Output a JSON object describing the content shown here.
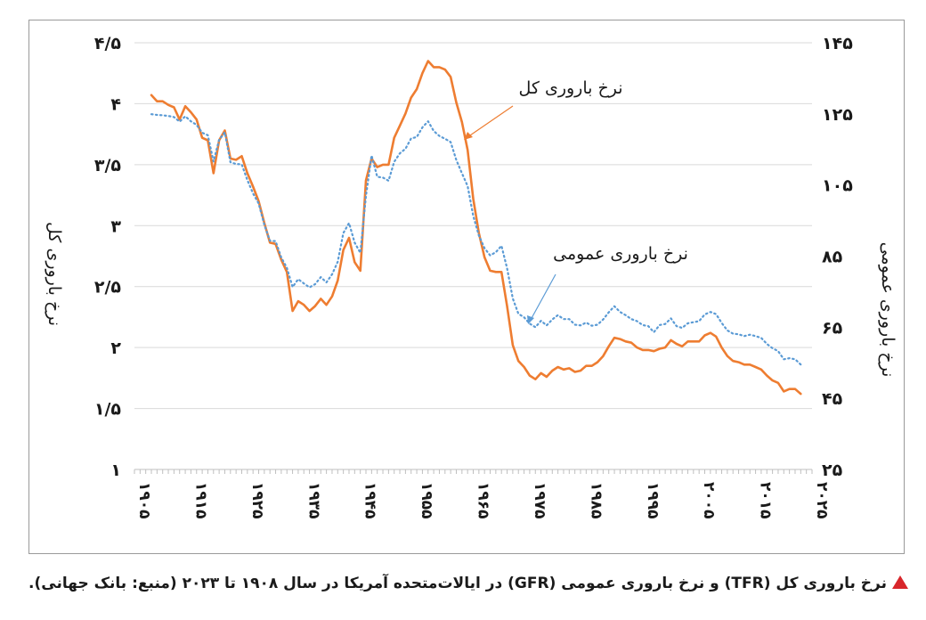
{
  "caption": {
    "text": "نرخ باروری کل (TFR) و نرخ باروری عمومی (GFR) در ایالات‌متحده آمریکا در سال ۱۹۰۸ تا ۲۰۲۳ (منبع: بانک جهانی).",
    "marker_color": "#d8262b"
  },
  "chart_data": {
    "type": "line",
    "title": "",
    "xlabel": "",
    "ylabel_left": "نرخ باروری کل",
    "ylabel_right": "نرخ باروری عمومی",
    "xlim": [
      1905,
      2025
    ],
    "ylim_left": [
      1,
      4.5
    ],
    "ylim_right": [
      25,
      145
    ],
    "x_ticks": [
      1905,
      1915,
      1925,
      1935,
      1945,
      1955,
      1965,
      1975,
      1985,
      1995,
      2005,
      2015,
      2025
    ],
    "x_tick_labels": [
      "۱۹۰۵",
      "۱۹۱۵",
      "۱۹۲۵",
      "۱۹۳۵",
      "۱۹۴۵",
      "۱۹۵۵",
      "۱۹۶۵",
      "۱۹۷۵",
      "۱۹۸۵",
      "۱۹۹۵",
      "۲۰۰۵",
      "۲۰۱۵",
      "۲۰۲۵"
    ],
    "y_ticks_left": [
      1,
      1.5,
      2,
      2.5,
      3,
      3.5,
      4,
      4.5
    ],
    "y_tick_labels_left": [
      "۱",
      "۱/۵",
      "۲",
      "۲/۵",
      "۳",
      "۳/۵",
      "۴",
      "۴/۵"
    ],
    "y_ticks_right": [
      25,
      45,
      65,
      85,
      105,
      125,
      145
    ],
    "y_tick_labels_right": [
      "۲۵",
      "۴۵",
      "۶۵",
      "۸۵",
      "۱۰۵",
      "۱۲۵",
      "۱۴۵"
    ],
    "grid": "horizontal",
    "series": [
      {
        "name": "نرخ باروری کل",
        "axis": "left",
        "color": "#ee7d31",
        "style": "solid",
        "x": [
          1908,
          1909,
          1910,
          1911,
          1912,
          1913,
          1914,
          1915,
          1916,
          1917,
          1918,
          1919,
          1920,
          1921,
          1922,
          1923,
          1924,
          1925,
          1926,
          1927,
          1928,
          1929,
          1930,
          1931,
          1932,
          1933,
          1934,
          1935,
          1936,
          1937,
          1938,
          1939,
          1940,
          1941,
          1942,
          1943,
          1944,
          1945,
          1946,
          1947,
          1948,
          1949,
          1950,
          1951,
          1952,
          1953,
          1954,
          1955,
          1956,
          1957,
          1958,
          1959,
          1960,
          1961,
          1962,
          1963,
          1964,
          1965,
          1966,
          1967,
          1968,
          1969,
          1970,
          1971,
          1972,
          1973,
          1974,
          1975,
          1976,
          1977,
          1978,
          1979,
          1980,
          1981,
          1982,
          1983,
          1984,
          1985,
          1986,
          1987,
          1988,
          1989,
          1990,
          1991,
          1992,
          1993,
          1994,
          1995,
          1996,
          1997,
          1998,
          1999,
          2000,
          2001,
          2002,
          2003,
          2004,
          2005,
          2006,
          2007,
          2008,
          2009,
          2010,
          2011,
          2012,
          2013,
          2014,
          2015,
          2016,
          2017,
          2018,
          2019,
          2020,
          2021,
          2022,
          2023
        ],
        "values": [
          4.07,
          4.02,
          4.02,
          3.99,
          3.97,
          3.87,
          3.98,
          3.93,
          3.87,
          3.72,
          3.7,
          3.43,
          3.7,
          3.78,
          3.55,
          3.54,
          3.57,
          3.43,
          3.32,
          3.2,
          3.02,
          2.86,
          2.85,
          2.72,
          2.62,
          2.3,
          2.38,
          2.35,
          2.3,
          2.34,
          2.4,
          2.35,
          2.42,
          2.55,
          2.8,
          2.9,
          2.7,
          2.63,
          3.37,
          3.55,
          3.48,
          3.5,
          3.5,
          3.72,
          3.82,
          3.92,
          4.05,
          4.12,
          4.25,
          4.35,
          4.3,
          4.3,
          4.28,
          4.22,
          4.01,
          3.85,
          3.62,
          3.22,
          2.94,
          2.74,
          2.63,
          2.62,
          2.62,
          2.34,
          2.02,
          1.89,
          1.84,
          1.77,
          1.74,
          1.79,
          1.76,
          1.81,
          1.84,
          1.82,
          1.83,
          1.8,
          1.81,
          1.85,
          1.85,
          1.88,
          1.93,
          2.01,
          2.08,
          2.07,
          2.05,
          2.04,
          2.0,
          1.98,
          1.98,
          1.97,
          1.99,
          2.0,
          2.06,
          2.03,
          2.01,
          2.05,
          2.05,
          2.05,
          2.1,
          2.12,
          2.09,
          2.0,
          1.93,
          1.89,
          1.88,
          1.86,
          1.86,
          1.84,
          1.82,
          1.77,
          1.73,
          1.71,
          1.64,
          1.66,
          1.66,
          1.62
        ]
      },
      {
        "name": "نرخ باروری عمومی",
        "axis": "right",
        "color": "#5b9bd5",
        "style": "dotted",
        "x": [
          1908,
          1909,
          1910,
          1911,
          1912,
          1913,
          1914,
          1915,
          1916,
          1917,
          1918,
          1919,
          1920,
          1921,
          1922,
          1923,
          1924,
          1925,
          1926,
          1927,
          1928,
          1929,
          1930,
          1931,
          1932,
          1933,
          1934,
          1935,
          1936,
          1937,
          1938,
          1939,
          1940,
          1941,
          1942,
          1943,
          1944,
          1945,
          1946,
          1947,
          1948,
          1949,
          1950,
          1951,
          1952,
          1953,
          1954,
          1955,
          1956,
          1957,
          1958,
          1959,
          1960,
          1961,
          1962,
          1963,
          1964,
          1965,
          1966,
          1967,
          1968,
          1969,
          1970,
          1971,
          1972,
          1973,
          1974,
          1975,
          1976,
          1977,
          1978,
          1979,
          1980,
          1981,
          1982,
          1983,
          1984,
          1985,
          1986,
          1987,
          1988,
          1989,
          1990,
          1991,
          1992,
          1993,
          1994,
          1995,
          1996,
          1997,
          1998,
          1999,
          2000,
          2001,
          2002,
          2003,
          2004,
          2005,
          2006,
          2007,
          2008,
          2009,
          2010,
          2011,
          2012,
          2013,
          2014,
          2015,
          2016,
          2017,
          2018,
          2019,
          2020,
          2021,
          2022,
          2023
        ],
        "values": [
          124.9,
          124.7,
          124.6,
          124.4,
          124.1,
          122.8,
          124.3,
          122.9,
          121.9,
          119.7,
          119.0,
          111.6,
          117.7,
          119.8,
          111.4,
          110.9,
          110.8,
          106.4,
          102.6,
          99.8,
          93.8,
          89.3,
          89.2,
          84.6,
          81.7,
          76.3,
          78.5,
          77.3,
          76.2,
          77.1,
          79.1,
          77.6,
          79.9,
          83.4,
          91.5,
          94.3,
          88.8,
          85.9,
          101.9,
          113.3,
          107.3,
          107.1,
          106.2,
          111.5,
          113.9,
          115.2,
          118.1,
          118.5,
          121.2,
          122.9,
          120.2,
          118.8,
          118.0,
          117.1,
          112.0,
          108.3,
          104.7,
          96.3,
          90.8,
          87.2,
          85.2,
          86.1,
          87.9,
          81.6,
          73.1,
          68.8,
          67.8,
          66.0,
          65.0,
          66.8,
          65.5,
          67.2,
          68.4,
          67.3,
          67.3,
          65.7,
          65.5,
          66.3,
          65.4,
          65.7,
          67.2,
          69.2,
          70.9,
          69.3,
          68.4,
          67.3,
          66.7,
          65.6,
          65.3,
          63.6,
          65.6,
          65.9,
          67.5,
          65.3,
          64.8,
          66.1,
          66.4,
          66.7,
          68.6,
          69.3,
          68.7,
          66.2,
          64.1,
          63.2,
          63.0,
          62.5,
          62.9,
          62.5,
          62.0,
          60.3,
          59.1,
          58.3,
          56.0,
          56.3,
          56.0,
          54.5
        ]
      }
    ],
    "annotations": [
      {
        "text": "نرخ باروری کل",
        "points_to": "series-tfr",
        "near_x": 1964,
        "color": "#ee7d31"
      },
      {
        "text": "نرخ باروری عمومی",
        "points_to": "series-gfr",
        "near_x": 1975,
        "color": "#5b9bd5"
      }
    ]
  }
}
